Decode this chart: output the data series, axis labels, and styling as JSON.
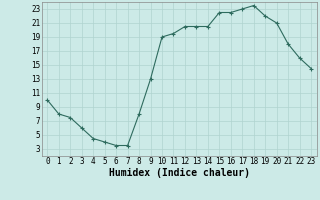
{
  "x": [
    0,
    1,
    2,
    3,
    4,
    5,
    6,
    7,
    8,
    9,
    10,
    11,
    12,
    13,
    14,
    15,
    16,
    17,
    18,
    19,
    20,
    21,
    22,
    23
  ],
  "y": [
    10,
    8,
    7.5,
    6,
    4.5,
    4,
    3.5,
    3.5,
    8,
    13,
    19,
    19.5,
    20.5,
    20.5,
    20.5,
    22.5,
    22.5,
    23,
    23.5,
    22,
    21,
    18,
    16,
    14.5
  ],
  "line_color": "#2e6b5e",
  "marker": "+",
  "marker_size": 3,
  "marker_linewidth": 0.8,
  "line_width": 0.8,
  "bg_color": "#cceae7",
  "grid_color": "#b0d4d0",
  "xlabel": "Humidex (Indice chaleur)",
  "xlim": [
    -0.5,
    23.5
  ],
  "ylim": [
    2,
    24
  ],
  "yticks": [
    3,
    5,
    7,
    9,
    11,
    13,
    15,
    17,
    19,
    21,
    23
  ],
  "xticks": [
    0,
    1,
    2,
    3,
    4,
    5,
    6,
    7,
    8,
    9,
    10,
    11,
    12,
    13,
    14,
    15,
    16,
    17,
    18,
    19,
    20,
    21,
    22,
    23
  ],
  "tick_label_fontsize": 5.5,
  "xlabel_fontsize": 7,
  "spine_color": "#888888"
}
